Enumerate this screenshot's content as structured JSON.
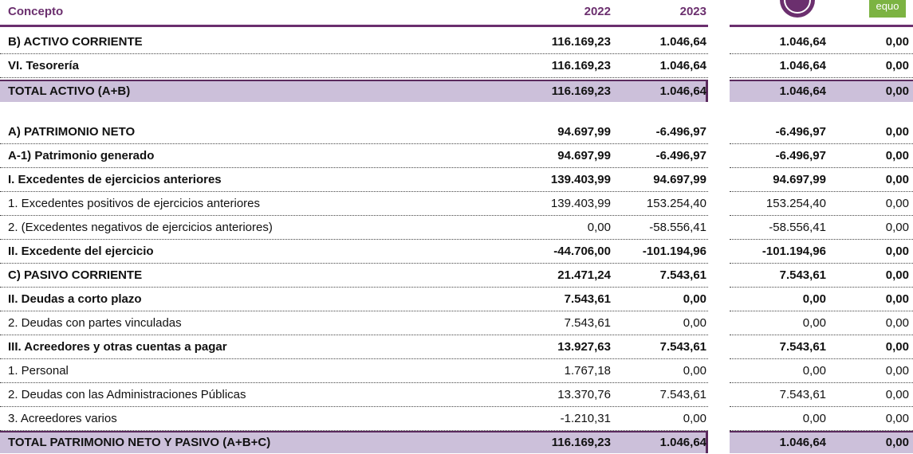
{
  "header": {
    "concept": "Concepto",
    "years": [
      "2022",
      "2023"
    ],
    "logo_text": "equo"
  },
  "table": {
    "rows": [
      [
        "B) ACTIVO CORRIENTE",
        "116.169,23",
        "1.046,64",
        "1.046,64",
        "0,00"
      ],
      [
        "VI. Tesorería",
        "116.169,23",
        "1.046,64",
        "1.046,64",
        "0,00"
      ],
      [
        "TOTAL ACTIVO (A+B)",
        "116.169,23",
        "1.046,64",
        "1.046,64",
        "0,00"
      ],
      [
        "A) PATRIMONIO NETO",
        "94.697,99",
        "-6.496,97",
        "-6.496,97",
        "0,00"
      ],
      [
        "A-1) Patrimonio generado",
        "94.697,99",
        "-6.496,97",
        "-6.496,97",
        "0,00"
      ],
      [
        "I. Excedentes de ejercicios anteriores",
        "139.403,99",
        "94.697,99",
        "94.697,99",
        "0,00"
      ],
      [
        "1. Excedentes positivos de ejercicios anteriores",
        "139.403,99",
        "153.254,40",
        "153.254,40",
        "0,00"
      ],
      [
        "2. (Excedentes negativos de ejercicios anteriores)",
        "0,00",
        "-58.556,41",
        "-58.556,41",
        "0,00"
      ],
      [
        "II. Excedente del ejercicio",
        "-44.706,00",
        "-101.194,96",
        "-101.194,96",
        "0,00"
      ],
      [
        "C) PASIVO CORRIENTE",
        "21.471,24",
        "7.543,61",
        "7.543,61",
        "0,00"
      ],
      [
        "II. Deudas a corto plazo",
        "7.543,61",
        "0,00",
        "0,00",
        "0,00"
      ],
      [
        "2. Deudas con partes vinculadas",
        "7.543,61",
        "0,00",
        "0,00",
        "0,00"
      ],
      [
        "III. Acreedores y otras cuentas a pagar",
        "13.927,63",
        "7.543,61",
        "7.543,61",
        "0,00"
      ],
      [
        "1. Personal",
        "1.767,18",
        "0,00",
        "0,00",
        "0,00"
      ],
      [
        "2. Deudas con las Administraciones Públicas",
        "13.370,76",
        "7.543,61",
        "7.543,61",
        "0,00"
      ],
      [
        "3. Acreedores varios",
        "-1.210,31",
        "0,00",
        "0,00",
        "0,00"
      ],
      [
        "TOTAL PATRIMONIO NETO Y PASIVO (A+B+C)",
        "116.169,23",
        "1.046,64",
        "1.046,64",
        "0,00"
      ]
    ]
  }
}
